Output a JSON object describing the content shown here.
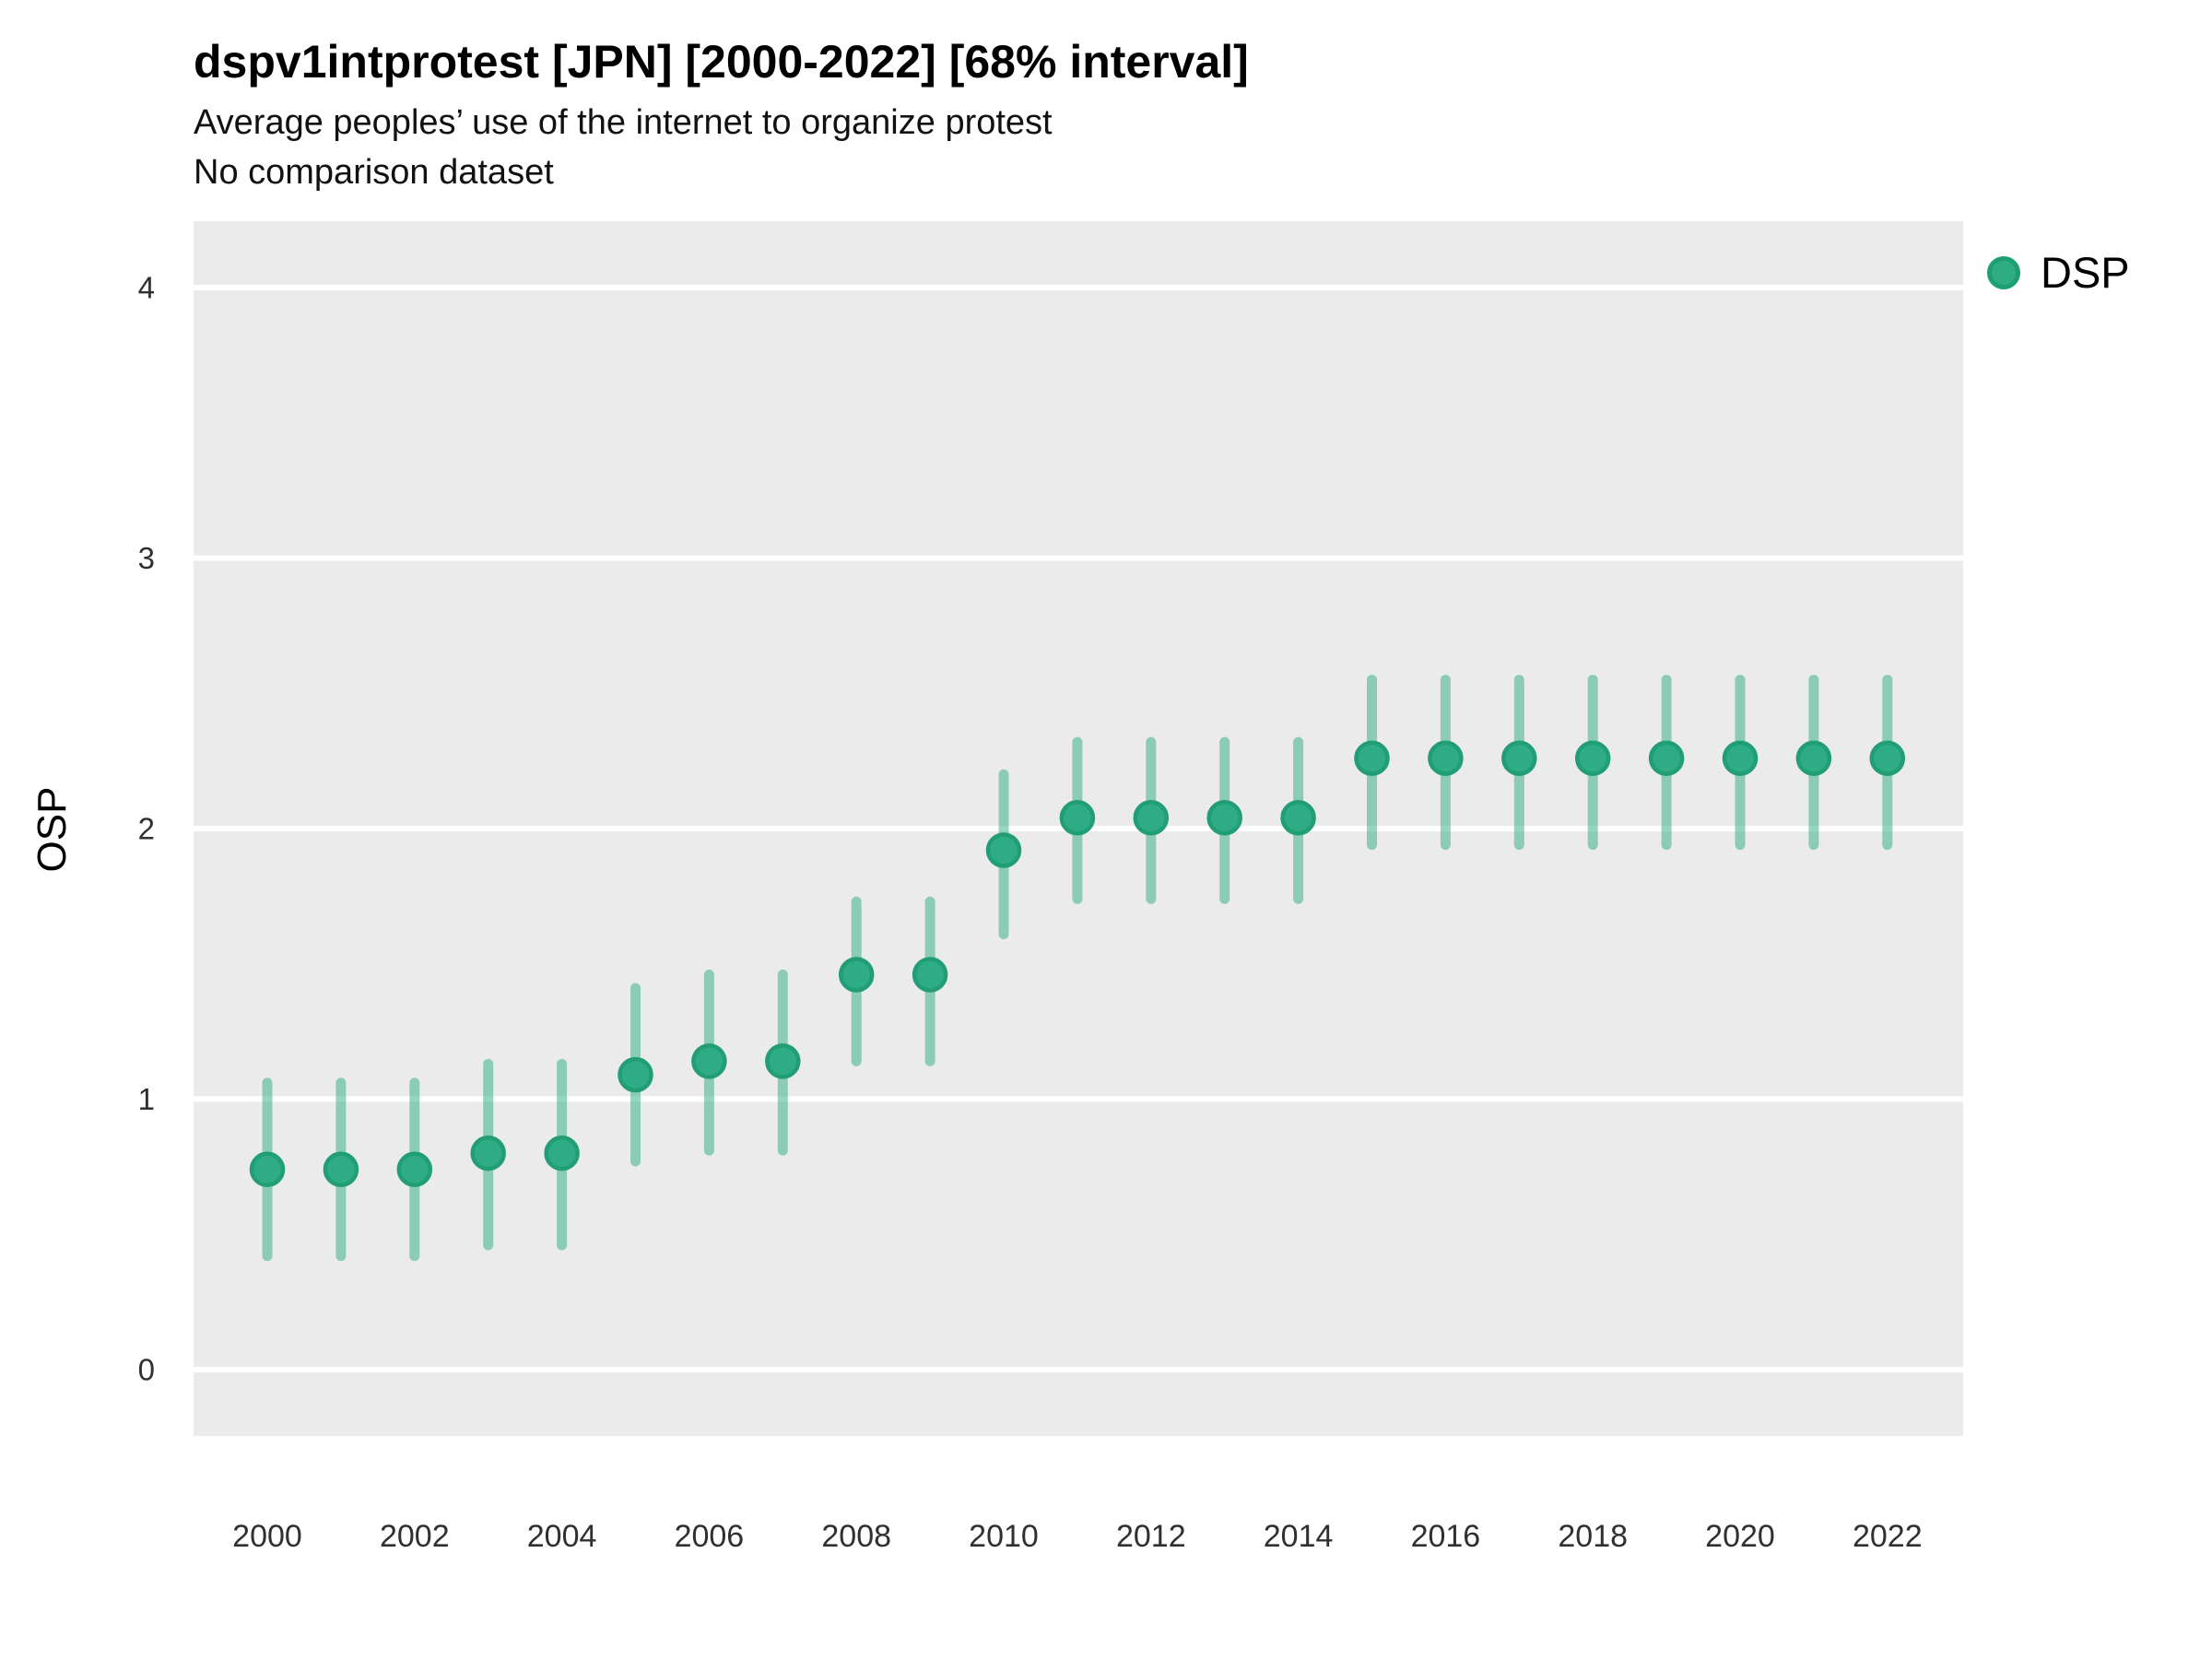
{
  "header": {
    "title": "dspv1intprotest [JPN] [2000-2022] [68% interval]",
    "subtitle": "Average peoples’ use of the internet to organize protest",
    "note": "No comparison dataset"
  },
  "legend": {
    "items": [
      {
        "label": "DSP",
        "color": "#2EAC83",
        "border_color": "#1F9E74"
      }
    ]
  },
  "colors": {
    "panel_background": "#EBEBEB",
    "gridline": "#FFFFFF",
    "point_fill": "#2EAC83",
    "point_stroke": "#219E76",
    "interval_bar": "#2EAC83",
    "tick_label": "#303030"
  },
  "chart_data": {
    "type": "scatter",
    "title": "dspv1intprotest [JPN] [2000-2022] [68% interval]",
    "subtitle": "Average peoples’ use of the internet to organize protest",
    "note": "No comparison dataset",
    "xlabel": "",
    "ylabel": "OSP",
    "interval_label": "68% interval",
    "country": "JPN",
    "grid": "horizontal-major-only",
    "legend_position": "right-top",
    "ylim": [
      -0.25,
      4.25
    ],
    "yticks": [
      0,
      1,
      2,
      3,
      4
    ],
    "xticks": [
      2000,
      2002,
      2004,
      2006,
      2008,
      2010,
      2012,
      2014,
      2016,
      2018,
      2020,
      2022
    ],
    "x": [
      2000,
      2001,
      2002,
      2003,
      2004,
      2005,
      2006,
      2007,
      2008,
      2009,
      2010,
      2011,
      2012,
      2013,
      2014,
      2015,
      2016,
      2017,
      2018,
      2019,
      2020,
      2021,
      2022
    ],
    "series": [
      {
        "name": "DSP",
        "values": [
          0.74,
          0.74,
          0.74,
          0.8,
          0.8,
          1.09,
          1.14,
          1.14,
          1.46,
          1.46,
          1.92,
          2.04,
          2.04,
          2.04,
          2.04,
          2.26,
          2.26,
          2.26,
          2.26,
          2.26,
          2.26,
          2.26,
          2.26
        ],
        "lower": [
          0.42,
          0.42,
          0.42,
          0.46,
          0.46,
          0.77,
          0.81,
          0.81,
          1.14,
          1.14,
          1.61,
          1.74,
          1.74,
          1.74,
          1.74,
          1.94,
          1.94,
          1.94,
          1.94,
          1.94,
          1.94,
          1.94,
          1.94
        ],
        "upper": [
          1.06,
          1.06,
          1.06,
          1.13,
          1.13,
          1.41,
          1.46,
          1.46,
          1.73,
          1.73,
          2.2,
          2.32,
          2.32,
          2.32,
          2.32,
          2.55,
          2.55,
          2.55,
          2.55,
          2.55,
          2.55,
          2.55,
          2.55
        ]
      }
    ]
  }
}
